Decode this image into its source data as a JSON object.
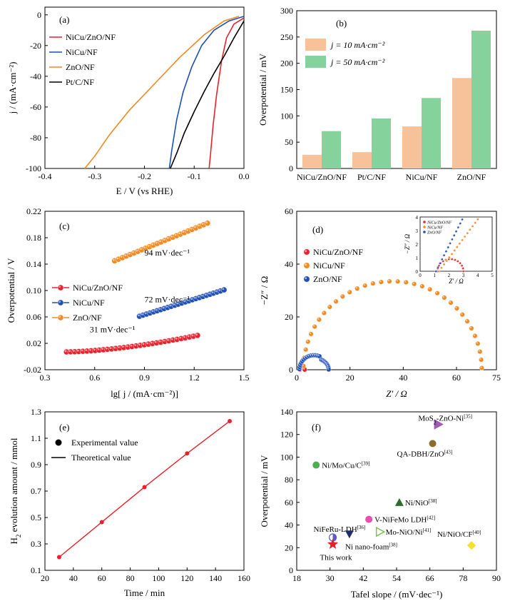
{
  "chart_data": [
    {
      "type": "line",
      "panel_label": "(a)",
      "xlabel": "E / V (vs RHE)",
      "ylabel": "j / (mA·cm⁻²)",
      "xlim": [
        -0.4,
        0.0
      ],
      "ylim": [
        -100,
        5
      ],
      "xticks": [
        "-0.4",
        "-0.3",
        "-0.2",
        "-0.1",
        "0.0"
      ],
      "yticks": [
        "0",
        "-20",
        "-40",
        "-60",
        "-80",
        "-100"
      ],
      "legend_position": "top-left",
      "series": [
        {
          "name": "NiCu/ZnO/NF",
          "color": "#e8212b",
          "x": [
            0.0,
            -0.02,
            -0.035,
            -0.045,
            -0.055,
            -0.062,
            -0.067,
            -0.07
          ],
          "y": [
            -2,
            -6,
            -15,
            -30,
            -52,
            -72,
            -90,
            -100
          ]
        },
        {
          "name": "NiCu/NF",
          "color": "#1f4fb4",
          "x": [
            0.0,
            -0.03,
            -0.06,
            -0.085,
            -0.105,
            -0.122,
            -0.135,
            -0.145,
            -0.15
          ],
          "y": [
            -1,
            -4,
            -10,
            -20,
            -34,
            -50,
            -68,
            -88,
            -100
          ]
        },
        {
          "name": "ZnO/NF",
          "color": "#f28a22",
          "x": [
            -0.01,
            -0.04,
            -0.08,
            -0.13,
            -0.18,
            -0.23,
            -0.27,
            -0.3,
            -0.32
          ],
          "y": [
            -1,
            -4,
            -13,
            -28,
            -45,
            -62,
            -78,
            -92,
            -100
          ]
        },
        {
          "name": "Pt/C/NF",
          "color": "#000000",
          "x": [
            0.0,
            -0.02,
            -0.04,
            -0.06,
            -0.08,
            -0.1,
            -0.12,
            -0.135,
            -0.148
          ],
          "y": [
            -4,
            -15,
            -27,
            -38,
            -50,
            -63,
            -77,
            -90,
            -100
          ]
        }
      ]
    },
    {
      "type": "bar",
      "panel_label": "(b)",
      "xlabel": "",
      "ylabel": "Overpotential / mV",
      "ylim": [
        0,
        300
      ],
      "yticks": [
        "0",
        "50",
        "100",
        "150",
        "200",
        "250",
        "300"
      ],
      "categories": [
        "NiCu/ZnO/NF",
        "Pt/C/NF",
        "NiCu/NF",
        "ZnO/NF"
      ],
      "legend_position": "top-left",
      "series": [
        {
          "name": "j = 10 mA·cm⁻²",
          "color": "#f7c29a",
          "values": [
            26,
            31,
            80,
            172
          ]
        },
        {
          "name": "j = 50 mA·cm⁻²",
          "color": "#86d29d",
          "values": [
            71,
            95,
            134,
            262
          ]
        }
      ]
    },
    {
      "type": "scatter",
      "panel_label": "(c)",
      "xlabel": "lg[ j / (mA·cm⁻²)]",
      "ylabel": "Overpotential / V",
      "xlim": [
        0.3,
        1.5
      ],
      "ylim": [
        -0.02,
        0.22
      ],
      "xticks": [
        "0.3",
        "0.6",
        "0.9",
        "1.2",
        "1.5"
      ],
      "yticks": [
        "-0.02",
        "0.02",
        "0.06",
        "0.10",
        "0.14",
        "0.18",
        "0.22"
      ],
      "legend_position": "middle-left",
      "series": [
        {
          "name": "NiCu/ZnO/NF",
          "color": "#e8212b",
          "x_start": 0.43,
          "x_end": 1.22,
          "y_start": 0.007,
          "y_end": 0.032,
          "count": 33
        },
        {
          "name": "NiCu/NF",
          "color": "#1f4fb4",
          "x_start": 0.87,
          "x_end": 1.38,
          "y_start": 0.061,
          "y_end": 0.101,
          "count": 25
        },
        {
          "name": "ZnO/NF",
          "color": "#f28a22",
          "x_start": 0.72,
          "x_end": 1.28,
          "y_start": 0.145,
          "y_end": 0.202,
          "count": 25
        }
      ],
      "annotations": [
        {
          "text": "94 mV·dec⁻¹",
          "color": "#f28a22",
          "x": 0.9,
          "y": 0.153
        },
        {
          "text": "72 mV·dec⁻¹",
          "color": "#1f4fb4",
          "x": 0.9,
          "y": 0.082
        },
        {
          "text": "31 mV·dec⁻¹",
          "color": "#e8212b",
          "x": 0.57,
          "y": 0.037
        }
      ]
    },
    {
      "type": "scatter",
      "panel_label": "(d)",
      "xlabel": "Z′ / Ω",
      "ylabel": "−Z″ / Ω",
      "xlim": [
        0,
        75
      ],
      "ylim": [
        0,
        60
      ],
      "xticks": [
        "0",
        "20",
        "40",
        "60",
        "75"
      ],
      "yticks": [
        "0",
        "20",
        "40",
        "60"
      ],
      "legend_position": "middle-left",
      "series": [
        {
          "name": "NiCu/ZnO/NF",
          "color": "#e8212b",
          "center": 2.1,
          "radius": 0.9
        },
        {
          "name": "NiCu/NF",
          "color": "#f28a22",
          "center": 36,
          "radius": 33.5
        },
        {
          "name": "ZnO/NF",
          "color": "#1f4fb4",
          "center": 6.5,
          "radius": 5.5
        }
      ],
      "inset": {
        "xlabel": "Z′ / Ω",
        "ylabel": "−Z″ / Ω",
        "xlim": [
          0,
          5
        ],
        "ylim": [
          0,
          4
        ],
        "xticks": [
          "0",
          "1",
          "2",
          "3",
          "4",
          "5"
        ],
        "yticks": [
          "0",
          "1",
          "2",
          "3",
          "4"
        ],
        "legend": [
          "NiCu/ZnO/NF",
          "NiCu/NF",
          "ZnO/NF"
        ]
      }
    },
    {
      "type": "line",
      "panel_label": "(e)",
      "xlabel": "Time / min",
      "ylabel": "H2 evolution amount / mmol",
      "xlim": [
        20,
        160
      ],
      "ylim": [
        0.1,
        1.3
      ],
      "xticks": [
        "20",
        "40",
        "60",
        "80",
        "100",
        "120",
        "140",
        "160"
      ],
      "yticks": [
        "0.1",
        "0.3",
        "0.5",
        "0.7",
        "0.9",
        "1.1",
        "1.3"
      ],
      "legend_position": "top-left",
      "legend": [
        "Experimental value",
        "Theoretical value"
      ],
      "color": "#e8212b",
      "x": [
        30,
        60,
        90,
        120,
        150
      ],
      "y": [
        0.2,
        0.465,
        0.73,
        0.985,
        1.23
      ]
    },
    {
      "type": "scatter",
      "panel_label": "(f)",
      "xlabel": "Tafel slope / (mV·dec⁻¹)",
      "ylabel": "Overpotential / mV",
      "xlim": [
        18,
        90
      ],
      "ylim": [
        0,
        140
      ],
      "xticks": [
        "18",
        "30",
        "42",
        "54",
        "66",
        "78",
        "90"
      ],
      "yticks": [
        "0",
        "20",
        "40",
        "60",
        "80",
        "100",
        "120",
        "140"
      ],
      "points": [
        {
          "label": "MoS₂-ZnO-Ni[35]",
          "x": 69,
          "y": 129,
          "color": "#a05bb5",
          "marker": "triangle-right"
        },
        {
          "label": "QA-DBH/ZnO[43]",
          "x": 67,
          "y": 112,
          "color": "#8b6d2c",
          "marker": "circle"
        },
        {
          "label": "Ni/Mo/Cu/C[39]",
          "x": 25,
          "y": 93,
          "color": "#4caf50",
          "marker": "circle"
        },
        {
          "label": "Ni/NiO[38]",
          "x": 55,
          "y": 60,
          "color": "#2e6b2e",
          "marker": "triangle-up"
        },
        {
          "label": "V-NiFeMo LDH[42]",
          "x": 44,
          "y": 45,
          "color": "#e64fb0",
          "marker": "circle"
        },
        {
          "label": "Mo-NiO/Ni[41]",
          "x": 48,
          "y": 34,
          "color": "#7cc24e",
          "marker": "triangle-right"
        },
        {
          "label": "NiFeRu-LDH[36]",
          "x": 31,
          "y": 29,
          "color": "#5b5fc2",
          "marker": "half-circle"
        },
        {
          "label": "Ni nano-foam[38]",
          "x": 37,
          "y": 32,
          "color": "#1f2e6b",
          "marker": "triangle-down"
        },
        {
          "label": "Ni/NiO/CF[40]",
          "x": 81,
          "y": 22,
          "color": "#f2e02a",
          "marker": "diamond"
        },
        {
          "label": "This work",
          "x": 31,
          "y": 23,
          "color": "#e8212b",
          "marker": "star"
        }
      ]
    }
  ]
}
